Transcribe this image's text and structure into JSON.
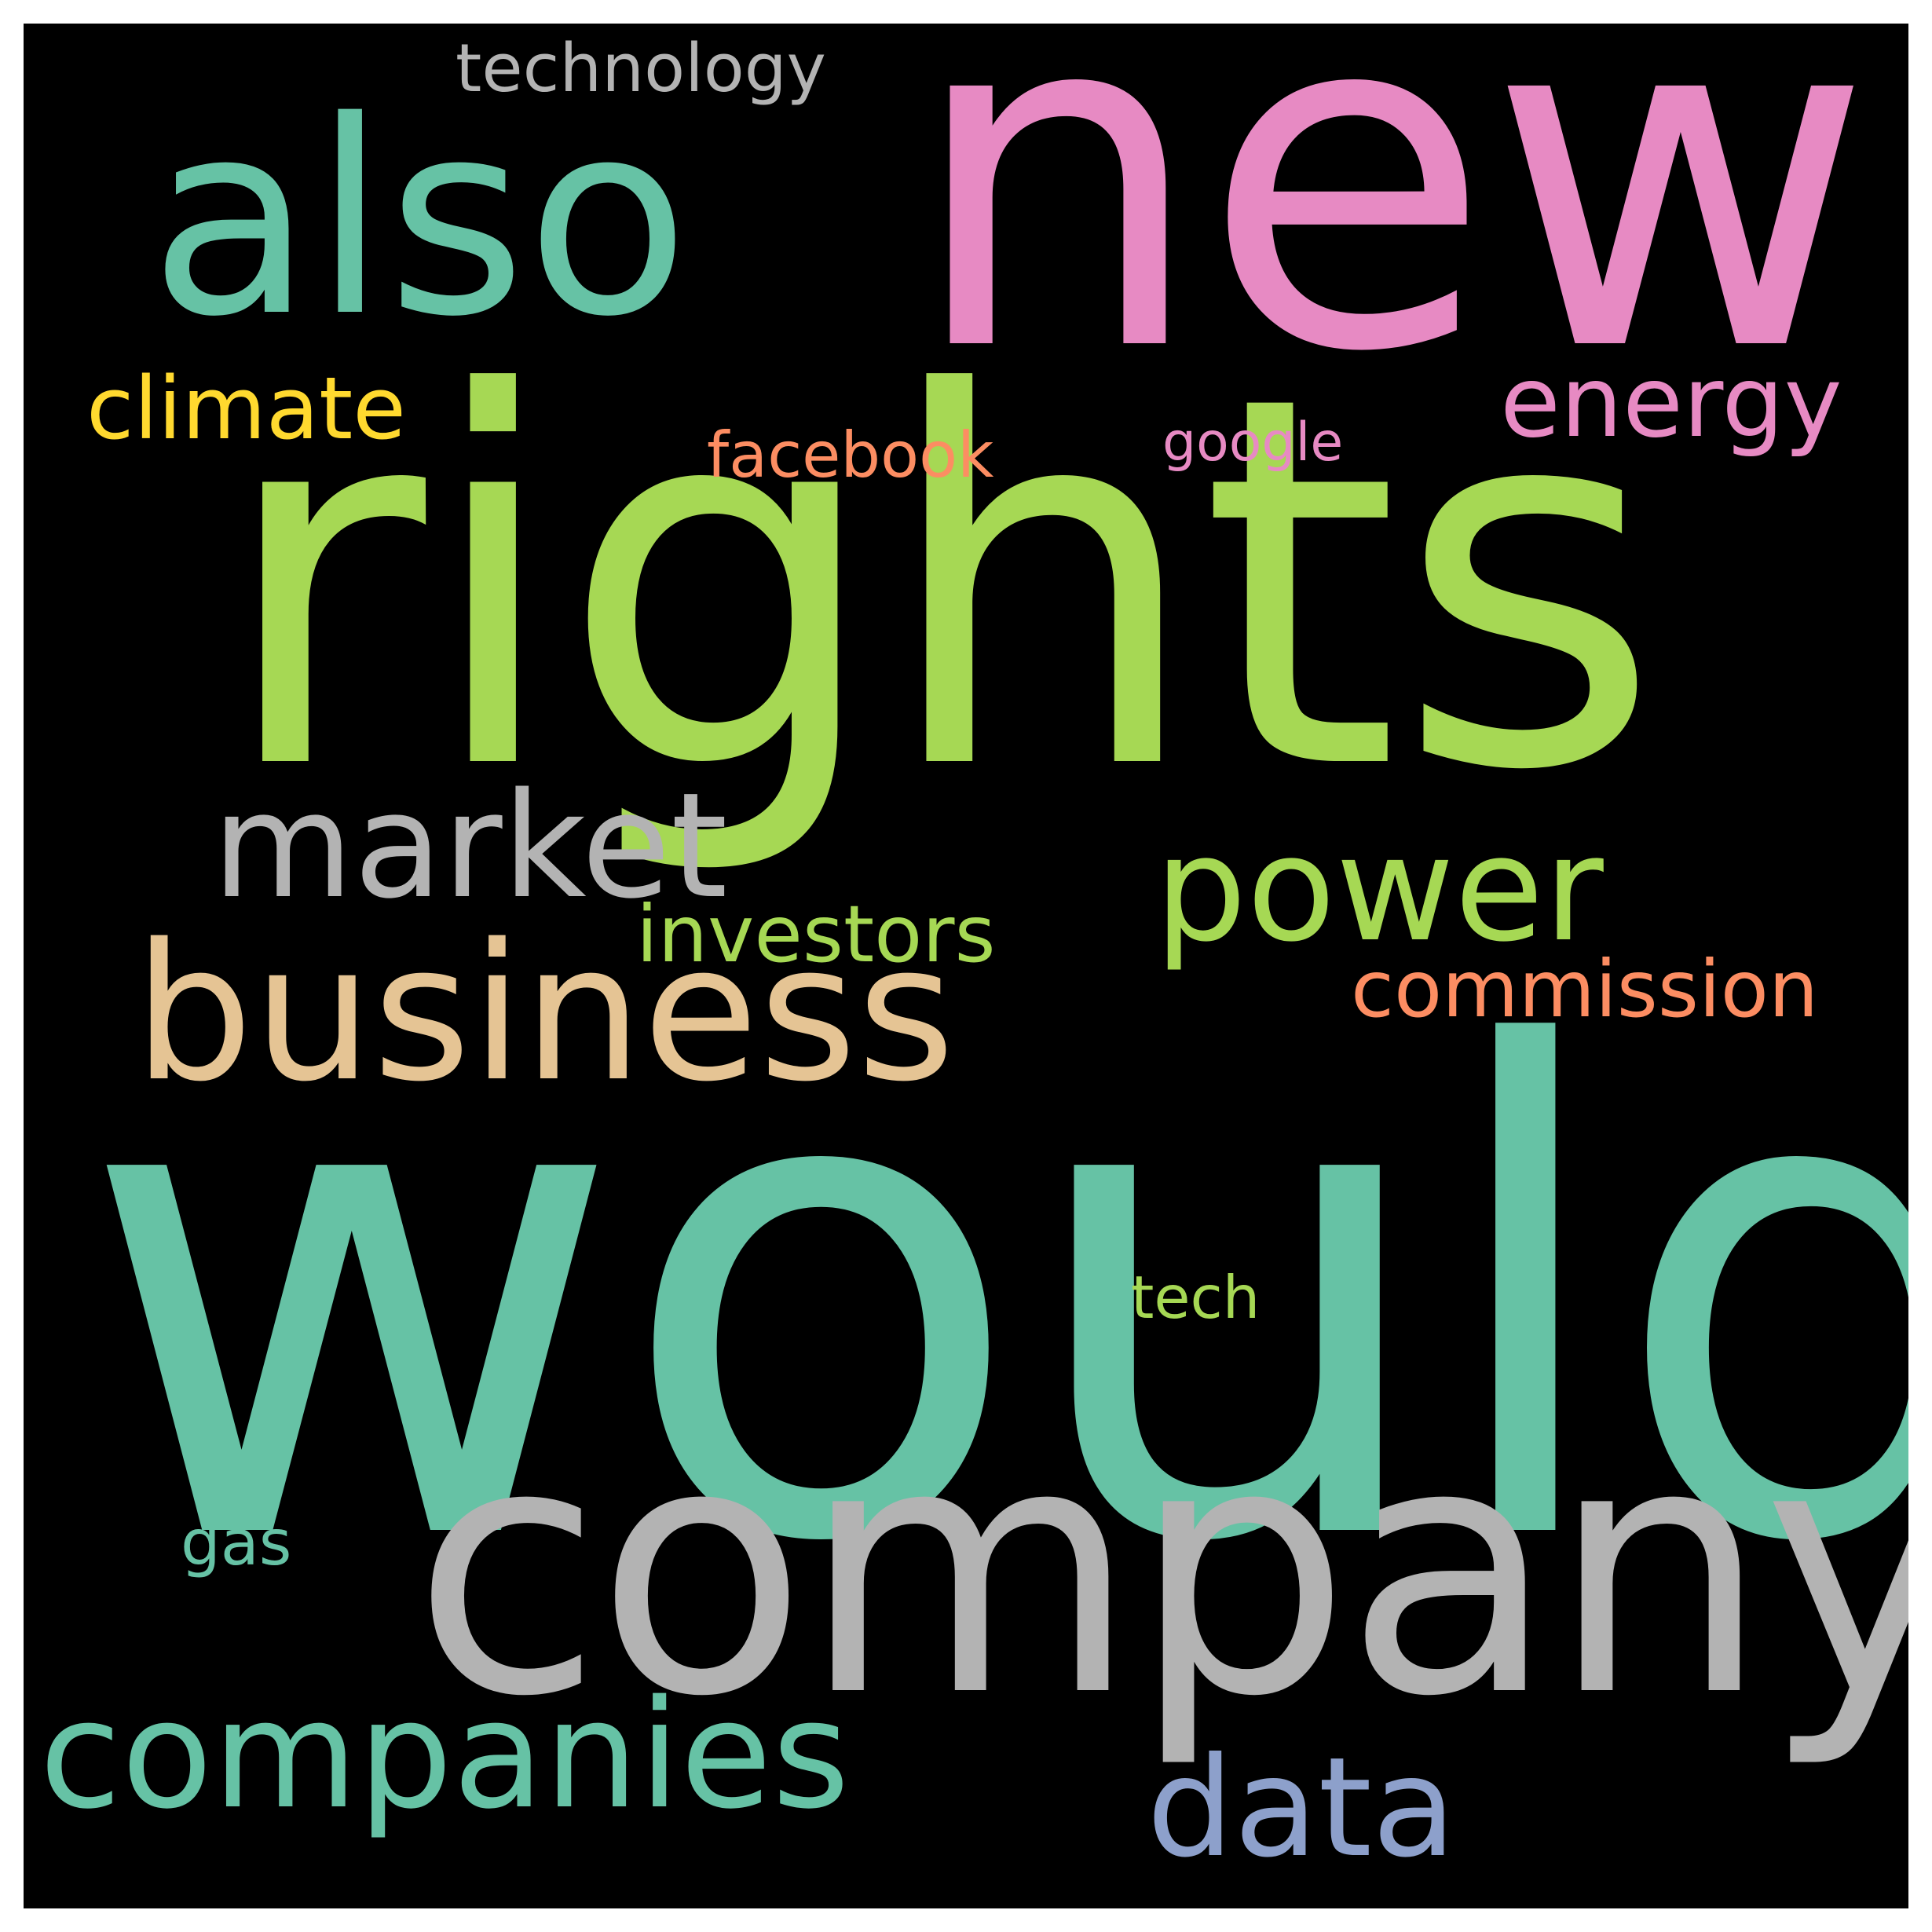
{
  "background_color": "#000000",
  "frame_color": "#ffffff",
  "words": {
    "would": {
      "text": "would",
      "color": "#66c2a5"
    },
    "rights": {
      "text": "rights",
      "color": "#a6d854"
    },
    "new": {
      "text": "new",
      "color": "#e78ac3"
    },
    "company": {
      "text": "company",
      "color": "#b3b3b3"
    },
    "also": {
      "text": "also",
      "color": "#66c2a5"
    },
    "business": {
      "text": "business",
      "color": "#e5c494"
    },
    "market": {
      "text": "market",
      "color": "#b3b3b3"
    },
    "companies": {
      "text": "companies",
      "color": "#66c2a5"
    },
    "power": {
      "text": "power",
      "color": "#a6d854"
    },
    "data": {
      "text": "data",
      "color": "#8da0cb"
    },
    "energy": {
      "text": "energy",
      "color": "#e78ac3"
    },
    "climate": {
      "text": "climate",
      "color": "#ffd92f"
    },
    "commission": {
      "text": "commission",
      "color": "#fc8d62"
    },
    "investors": {
      "text": "investors",
      "color": "#a6d854"
    },
    "technology": {
      "text": "technology",
      "color": "#b3b3b3"
    },
    "facebook": {
      "text": "facebook",
      "color": "#fc8d62"
    },
    "google": {
      "text": "google",
      "color": "#e78ac3"
    },
    "tech": {
      "text": "tech",
      "color": "#a6d854"
    },
    "gas": {
      "text": "gas",
      "color": "#66c2a5"
    }
  }
}
